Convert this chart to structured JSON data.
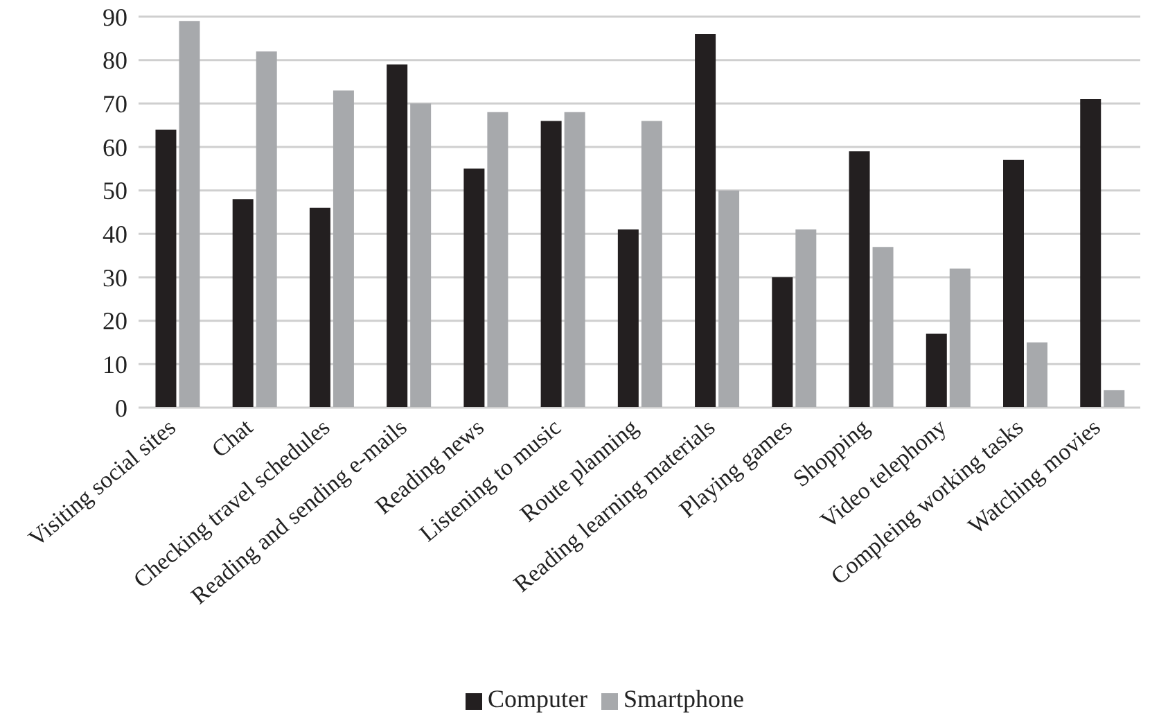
{
  "chart_data": {
    "type": "bar",
    "categories": [
      "Visiting social sites",
      "Chat",
      "Checking travel schedules",
      "Reading and sending e-mails",
      "Reading news",
      "Listening to music",
      "Route planning",
      "Reading learning materials",
      "Playing games",
      "Shopping",
      "Video telephony",
      "Compleing working tasks",
      "Watching movies"
    ],
    "series": [
      {
        "name": "Computer",
        "color": "#231f20",
        "values": [
          64,
          48,
          46,
          79,
          55,
          66,
          41,
          86,
          30,
          59,
          17,
          57,
          71
        ]
      },
      {
        "name": "Smartphone",
        "color": "#a7a9ac",
        "values": [
          89,
          82,
          73,
          70,
          68,
          68,
          66,
          50,
          41,
          37,
          32,
          15,
          4
        ]
      }
    ],
    "ylim": [
      0,
      90
    ],
    "yticks": [
      0,
      10,
      20,
      30,
      40,
      50,
      60,
      70,
      80,
      90
    ],
    "grid": "y",
    "legend": "bottom"
  }
}
